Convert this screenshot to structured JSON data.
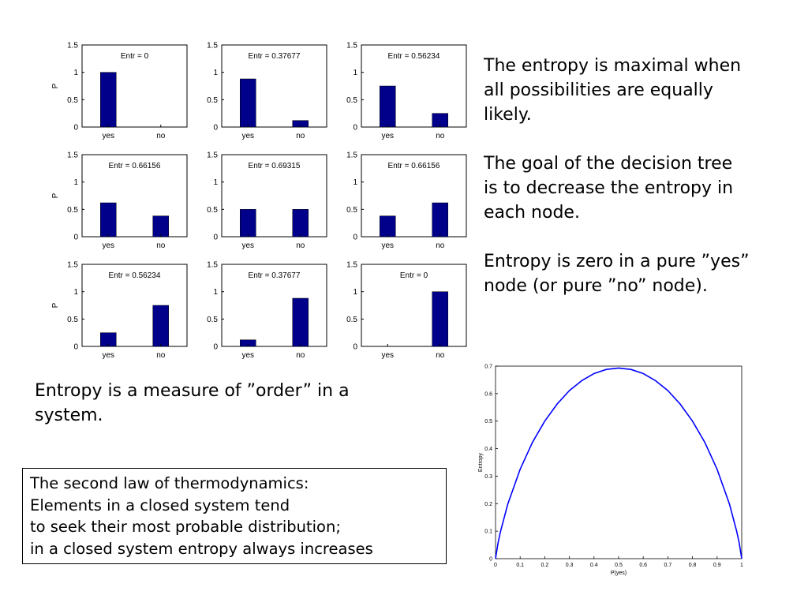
{
  "chart_data": [
    {
      "type": "bar",
      "categories": [
        "yes",
        "no"
      ],
      "values": [
        1,
        0
      ],
      "annotation": "Entr = 0",
      "ylabel": "P",
      "ylim": [
        0,
        1.5
      ],
      "yticks": [
        "0",
        "0.5",
        "1",
        "1.5"
      ],
      "bar_color": "#00008b"
    },
    {
      "type": "bar",
      "categories": [
        "yes",
        "no"
      ],
      "values": [
        0.88,
        0.12
      ],
      "annotation": "Entr = 0.37677",
      "ylabel": "",
      "ylim": [
        0,
        1.5
      ],
      "yticks": [
        "0",
        "0.5",
        "1",
        "1.5"
      ],
      "bar_color": "#00008b"
    },
    {
      "type": "bar",
      "categories": [
        "yes",
        "no"
      ],
      "values": [
        0.75,
        0.25
      ],
      "annotation": "Entr = 0.56234",
      "ylabel": "",
      "ylim": [
        0,
        1.5
      ],
      "yticks": [
        "0",
        "0.5",
        "1",
        "1.5"
      ],
      "bar_color": "#00008b"
    },
    {
      "type": "bar",
      "categories": [
        "yes",
        "no"
      ],
      "values": [
        0.62,
        0.38
      ],
      "annotation": "Entr = 0.66156",
      "ylabel": "P",
      "ylim": [
        0,
        1.5
      ],
      "yticks": [
        "0",
        "0.5",
        "1",
        "1.5"
      ],
      "bar_color": "#00008b"
    },
    {
      "type": "bar",
      "categories": [
        "yes",
        "no"
      ],
      "values": [
        0.5,
        0.5
      ],
      "annotation": "Entr = 0.69315",
      "ylabel": "",
      "ylim": [
        0,
        1.5
      ],
      "yticks": [
        "0",
        "0.5",
        "1",
        "1.5"
      ],
      "bar_color": "#00008b"
    },
    {
      "type": "bar",
      "categories": [
        "yes",
        "no"
      ],
      "values": [
        0.38,
        0.62
      ],
      "annotation": "Entr = 0.66156",
      "ylabel": "",
      "ylim": [
        0,
        1.5
      ],
      "yticks": [
        "0",
        "0.5",
        "1",
        "1.5"
      ],
      "bar_color": "#00008b"
    },
    {
      "type": "bar",
      "categories": [
        "yes",
        "no"
      ],
      "values": [
        0.25,
        0.75
      ],
      "annotation": "Entr = 0.56234",
      "ylabel": "P",
      "ylim": [
        0,
        1.5
      ],
      "yticks": [
        "0",
        "0.5",
        "1",
        "1.5"
      ],
      "bar_color": "#00008b"
    },
    {
      "type": "bar",
      "categories": [
        "yes",
        "no"
      ],
      "values": [
        0.12,
        0.88
      ],
      "annotation": "Entr = 0.37677",
      "ylabel": "",
      "ylim": [
        0,
        1.5
      ],
      "yticks": [
        "0",
        "0.5",
        "1",
        "1.5"
      ],
      "bar_color": "#00008b"
    },
    {
      "type": "bar",
      "categories": [
        "yes",
        "no"
      ],
      "values": [
        0,
        1
      ],
      "annotation": "Entr = 0",
      "ylabel": "",
      "ylim": [
        0,
        1.5
      ],
      "yticks": [
        "0",
        "0.5",
        "1",
        "1.5"
      ],
      "bar_color": "#00008b"
    },
    {
      "type": "line",
      "x": [
        0,
        0.01,
        0.02,
        0.05,
        0.1,
        0.15,
        0.2,
        0.25,
        0.3,
        0.35,
        0.4,
        0.45,
        0.5,
        0.55,
        0.6,
        0.65,
        0.7,
        0.75,
        0.8,
        0.85,
        0.9,
        0.95,
        0.98,
        0.99,
        1
      ],
      "y": [
        0,
        0.056,
        0.098,
        0.199,
        0.325,
        0.423,
        0.5,
        0.562,
        0.611,
        0.647,
        0.673,
        0.688,
        0.693,
        0.688,
        0.673,
        0.647,
        0.611,
        0.562,
        0.5,
        0.423,
        0.325,
        0.199,
        0.098,
        0.056,
        0
      ],
      "xlabel": "P(yes)",
      "ylabel": "Entropy",
      "xlim": [
        0,
        1
      ],
      "ylim": [
        0,
        0.7
      ],
      "xticks": [
        "0",
        "0.1",
        "0.2",
        "0.3",
        "0.4",
        "0.5",
        "0.6",
        "0.7",
        "0.8",
        "0.9",
        "1"
      ],
      "yticks": [
        "0",
        "0.1",
        "0.2",
        "0.3",
        "0.4",
        "0.5",
        "0.6",
        "0.7"
      ],
      "line_color": "#0000ff"
    }
  ],
  "text_right": [
    "The entropy is maximal when",
    "all possibilities are equally",
    "likely.",
    "",
    "The goal of the decision tree",
    "is to decrease the entropy in",
    "each node.",
    "",
    "Entropy is zero in a pure ”yes”",
    "node (or pure ”no” node)."
  ],
  "text_left": [
    "Entropy is a measure of ”order” in a",
    "system."
  ],
  "law_box": [
    "The second law of thermodynamics:",
    "Elements in a closed system tend",
    "to seek their most probable distribution;",
    "in a closed system entropy always increases"
  ]
}
